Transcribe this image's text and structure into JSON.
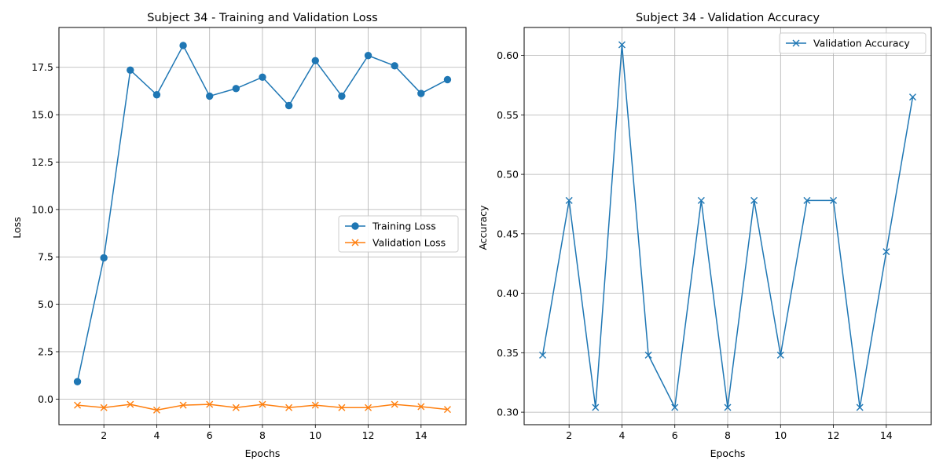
{
  "chart_data": [
    {
      "type": "line",
      "title": "Subject 34 - Training and Validation Loss",
      "xlabel": "Epochs",
      "ylabel": "Loss",
      "xlim": [
        0.3,
        15.7
      ],
      "ylim": [
        -1.35,
        19.6
      ],
      "xticks": [
        2,
        4,
        6,
        8,
        10,
        12,
        14
      ],
      "yticks": [
        0.0,
        2.5,
        5.0,
        7.5,
        10.0,
        12.5,
        15.0,
        17.5
      ],
      "ytick_labels": [
        "0.0",
        "2.5",
        "5.0",
        "7.5",
        "10.0",
        "12.5",
        "15.0",
        "17.5"
      ],
      "grid": true,
      "legend_position": "center-right",
      "x": [
        1,
        2,
        3,
        4,
        5,
        6,
        7,
        8,
        9,
        10,
        11,
        12,
        13,
        14,
        15
      ],
      "series": [
        {
          "name": "Training Loss",
          "marker": "circle",
          "color": "#1f77b4",
          "values": [
            0.92,
            7.45,
            17.35,
            16.05,
            18.65,
            15.98,
            16.38,
            16.98,
            15.48,
            17.85,
            15.98,
            18.12,
            17.58,
            16.12,
            16.85
          ]
        },
        {
          "name": "Validation Loss",
          "marker": "x",
          "color": "#ff7f0e",
          "values": [
            -0.32,
            -0.45,
            -0.28,
            -0.58,
            -0.32,
            -0.28,
            -0.45,
            -0.28,
            -0.45,
            -0.32,
            -0.45,
            -0.45,
            -0.28,
            -0.4,
            -0.55
          ]
        }
      ]
    },
    {
      "type": "line",
      "title": "Subject 34 - Validation Accuracy",
      "xlabel": "Epochs",
      "ylabel": "Accuracy",
      "xlim": [
        0.3,
        15.7
      ],
      "ylim": [
        0.2895,
        0.6235
      ],
      "xticks": [
        2,
        4,
        6,
        8,
        10,
        12,
        14
      ],
      "yticks": [
        0.3,
        0.35,
        0.4,
        0.45,
        0.5,
        0.55,
        0.6
      ],
      "ytick_labels": [
        "0.30",
        "0.35",
        "0.40",
        "0.45",
        "0.50",
        "0.55",
        "0.60"
      ],
      "grid": true,
      "legend_position": "top-right",
      "x": [
        1,
        2,
        3,
        4,
        5,
        6,
        7,
        8,
        9,
        10,
        11,
        12,
        13,
        14,
        15
      ],
      "series": [
        {
          "name": "Validation Accuracy",
          "marker": "x",
          "color": "#1f77b4",
          "values": [
            0.348,
            0.478,
            0.304,
            0.609,
            0.348,
            0.304,
            0.478,
            0.304,
            0.478,
            0.348,
            0.478,
            0.478,
            0.304,
            0.435,
            0.565
          ]
        }
      ]
    }
  ]
}
